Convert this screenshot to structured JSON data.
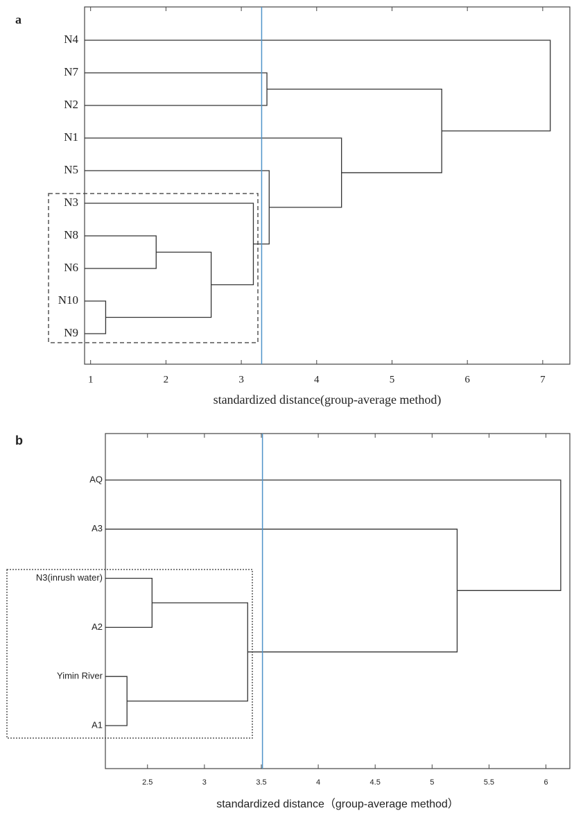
{
  "chart_data": [
    {
      "type": "dendrogram",
      "panel_label": "a",
      "leaves": [
        "N4",
        "N7",
        "N2",
        "N1",
        "N5",
        "N3",
        "N8",
        "N6",
        "N10",
        "N9"
      ],
      "merges": [
        {
          "children": [
            8,
            9
          ],
          "height": 1.2
        },
        {
          "children": [
            6,
            7
          ],
          "height": 1.87
        },
        {
          "children": [
            11,
            10
          ],
          "height": 2.6
        },
        {
          "children": [
            5,
            12
          ],
          "height": 3.16
        },
        {
          "children": [
            4,
            13
          ],
          "height": 3.37
        },
        {
          "children": [
            1,
            2
          ],
          "height": 3.34
        },
        {
          "children": [
            3,
            14
          ],
          "height": 4.33
        },
        {
          "children": [
            15,
            16
          ],
          "height": 5.66
        },
        {
          "children": [
            0,
            17
          ],
          "height": 7.1
        }
      ],
      "cut": 3.27,
      "cut_color": "#4f93c8",
      "color": "#333333",
      "xlim": [
        0.92,
        7.36
      ],
      "xticks": [
        1,
        2,
        3,
        4,
        5,
        6,
        7
      ],
      "xlabel": "standardized distance(group-average method)"
    },
    {
      "type": "dendrogram",
      "panel_label": "b",
      "leaves": [
        "AQ",
        "A3",
        "N3(inrush water)",
        "A2",
        "Yimin River",
        "A1"
      ],
      "merges": [
        {
          "children": [
            4,
            5
          ],
          "height": 2.32
        },
        {
          "children": [
            2,
            3
          ],
          "height": 2.54
        },
        {
          "children": [
            7,
            6
          ],
          "height": 3.38
        },
        {
          "children": [
            1,
            8
          ],
          "height": 5.22
        },
        {
          "children": [
            0,
            9
          ],
          "height": 6.13
        }
      ],
      "cut": 3.51,
      "cut_color": "#4f93c8",
      "color": "#333333",
      "xlim": [
        2.13,
        6.21
      ],
      "xticks": [
        2.5,
        3,
        3.5,
        4,
        4.5,
        5,
        5.5,
        6
      ],
      "xlabel": "standardized distance（group-average method）"
    }
  ]
}
